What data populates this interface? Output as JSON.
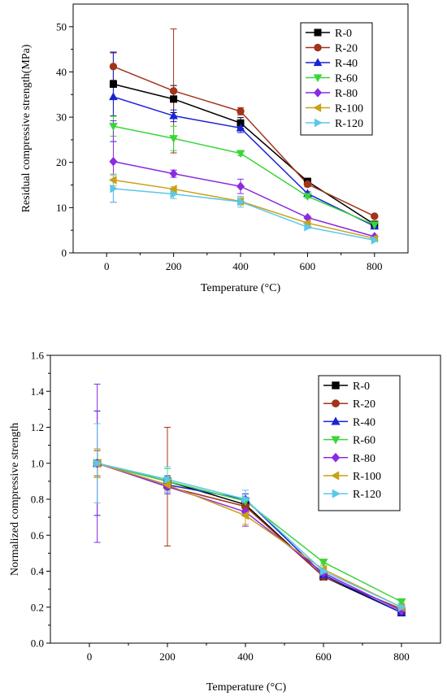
{
  "chart_data": [
    {
      "type": "line",
      "title": "",
      "xlabel": "Temperature (°C)",
      "ylabel": "Residual compressive strength(MPa)",
      "x": [
        20,
        200,
        400,
        600,
        800
      ],
      "xlim": [
        -100,
        900
      ],
      "ylim": [
        0,
        55
      ],
      "xticks": [
        0,
        200,
        400,
        600,
        800
      ],
      "yticks": [
        0,
        10,
        20,
        30,
        40,
        50
      ],
      "grid": false,
      "legend_position": "top-right",
      "series": [
        {
          "name": "R-0",
          "color": "#000000",
          "marker": "square",
          "values": [
            37.3,
            34.0,
            28.7,
            15.8,
            6.3
          ],
          "errors": [
            7.0,
            3.0,
            1.2,
            0.4,
            0.3
          ]
        },
        {
          "name": "R-20",
          "color": "#a1341a",
          "marker": "circle",
          "values": [
            41.2,
            35.8,
            31.3,
            15.2,
            8.1
          ],
          "errors": [
            3.0,
            13.7,
            0.8,
            0.6,
            0.3
          ]
        },
        {
          "name": "R-40",
          "color": "#1a22d6",
          "marker": "triangle-up",
          "values": [
            34.5,
            30.3,
            27.6,
            13.1,
            5.9
          ],
          "errors": [
            9.9,
            1.3,
            1.0,
            0.4,
            0.3
          ]
        },
        {
          "name": "R-60",
          "color": "#3bd53b",
          "marker": "triangle-down",
          "values": [
            28.0,
            25.3,
            22.0,
            12.5,
            6.2
          ],
          "errors": [
            2.2,
            2.7,
            0.5,
            0.4,
            0.3
          ]
        },
        {
          "name": "R-80",
          "color": "#8a2be2",
          "marker": "diamond",
          "values": [
            20.2,
            17.5,
            14.7,
            7.8,
            3.6
          ],
          "errors": [
            9.0,
            0.8,
            1.6,
            0.3,
            0.2
          ]
        },
        {
          "name": "R-100",
          "color": "#c9a016",
          "marker": "triangle-left",
          "values": [
            16.1,
            14.1,
            11.4,
            6.6,
            3.2
          ],
          "errors": [
            1.3,
            0.5,
            0.8,
            0.3,
            0.2
          ]
        },
        {
          "name": "R-120",
          "color": "#5cc7e8",
          "marker": "triangle-right",
          "values": [
            14.2,
            13.0,
            11.3,
            5.7,
            2.8
          ],
          "errors": [
            3.0,
            1.0,
            1.2,
            0.3,
            0.2
          ]
        }
      ]
    },
    {
      "type": "line",
      "title": "",
      "xlabel": "Temperature (°C)",
      "ylabel": "Normalized compressive strength",
      "x": [
        20,
        200,
        400,
        600,
        800
      ],
      "xlim": [
        -100,
        900
      ],
      "ylim": [
        0,
        1.6
      ],
      "xticks": [
        0,
        200,
        400,
        600,
        800
      ],
      "yticks": [
        0.0,
        0.2,
        0.4,
        0.6,
        0.8,
        1.0,
        1.2,
        1.4,
        1.6
      ],
      "grid": false,
      "legend_position": "top-right",
      "series": [
        {
          "name": "R-0",
          "color": "#000000",
          "marker": "square",
          "values": [
            1.0,
            0.9,
            0.77,
            0.37,
            0.17
          ],
          "errors": [
            0.08,
            0.03,
            0.03,
            0.01,
            0.01
          ]
        },
        {
          "name": "R-20",
          "color": "#a1341a",
          "marker": "circle",
          "values": [
            1.0,
            0.87,
            0.76,
            0.37,
            0.19
          ],
          "errors": [
            0.07,
            0.33,
            0.02,
            0.01,
            0.01
          ]
        },
        {
          "name": "R-40",
          "color": "#1a22d6",
          "marker": "triangle-up",
          "values": [
            1.0,
            0.88,
            0.8,
            0.38,
            0.17
          ],
          "errors": [
            0.29,
            0.04,
            0.03,
            0.01,
            0.01
          ]
        },
        {
          "name": "R-60",
          "color": "#3bd53b",
          "marker": "triangle-down",
          "values": [
            1.0,
            0.9,
            0.79,
            0.45,
            0.23
          ],
          "errors": [
            0.08,
            0.07,
            0.02,
            0.01,
            0.01
          ]
        },
        {
          "name": "R-80",
          "color": "#8a2be2",
          "marker": "diamond",
          "values": [
            1.0,
            0.87,
            0.73,
            0.39,
            0.18
          ],
          "errors": [
            0.44,
            0.04,
            0.08,
            0.02,
            0.01
          ]
        },
        {
          "name": "R-100",
          "color": "#c9a016",
          "marker": "triangle-left",
          "values": [
            1.0,
            0.88,
            0.71,
            0.41,
            0.2
          ],
          "errors": [
            0.08,
            0.03,
            0.05,
            0.02,
            0.01
          ]
        },
        {
          "name": "R-120",
          "color": "#5cc7e8",
          "marker": "triangle-right",
          "values": [
            1.0,
            0.91,
            0.8,
            0.4,
            0.2
          ],
          "errors": [
            0.22,
            0.07,
            0.05,
            0.01,
            0.01
          ]
        }
      ]
    }
  ]
}
